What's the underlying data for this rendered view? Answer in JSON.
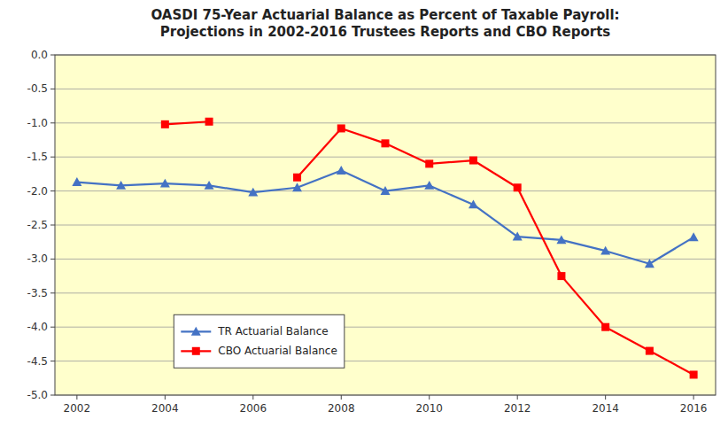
{
  "chart_data": {
    "type": "line",
    "title": "OASDI 75-Year Actuarial Balance as Percent of Taxable Payroll:\nProjections in 2002-2016 Trustees Reports and CBO Reports",
    "x": [
      2002,
      2003,
      2004,
      2005,
      2006,
      2007,
      2008,
      2009,
      2010,
      2011,
      2012,
      2013,
      2014,
      2015,
      2016
    ],
    "series": [
      {
        "name": "TR Actuarial Balance",
        "color": "#4472C4",
        "marker": "triangle",
        "values": [
          -1.87,
          -1.92,
          -1.89,
          -1.92,
          -2.02,
          -1.95,
          -1.7,
          -2.0,
          -1.92,
          -2.2,
          -2.67,
          -2.72,
          -2.88,
          -3.07,
          -2.68
        ]
      },
      {
        "name": "CBO Actuarial Balance",
        "color": "#FF0000",
        "marker": "square",
        "values": [
          null,
          null,
          -1.02,
          -0.98,
          null,
          -1.8,
          -1.08,
          -1.3,
          -1.6,
          -1.55,
          -1.95,
          -3.25,
          -4.0,
          -4.35,
          -4.7
        ]
      }
    ],
    "xlim": [
      2001.5,
      2016.5
    ],
    "xticks": [
      2002,
      2004,
      2006,
      2008,
      2010,
      2012,
      2014,
      2016
    ],
    "ylim": [
      -5.0,
      0.0
    ],
    "yticks": [
      {
        "value": 0,
        "label": "0.0"
      },
      -0.5,
      {
        "value": -1,
        "label": "-1.0"
      },
      -1.5,
      {
        "value": -2,
        "label": "-2.0"
      },
      -2.5,
      {
        "value": -3,
        "label": "-3.0"
      },
      -3.5,
      {
        "value": -4,
        "label": "-4.0"
      },
      -4.5,
      {
        "value": -5,
        "label": "-5.0"
      }
    ],
    "grid": true,
    "legend": "lower left"
  }
}
